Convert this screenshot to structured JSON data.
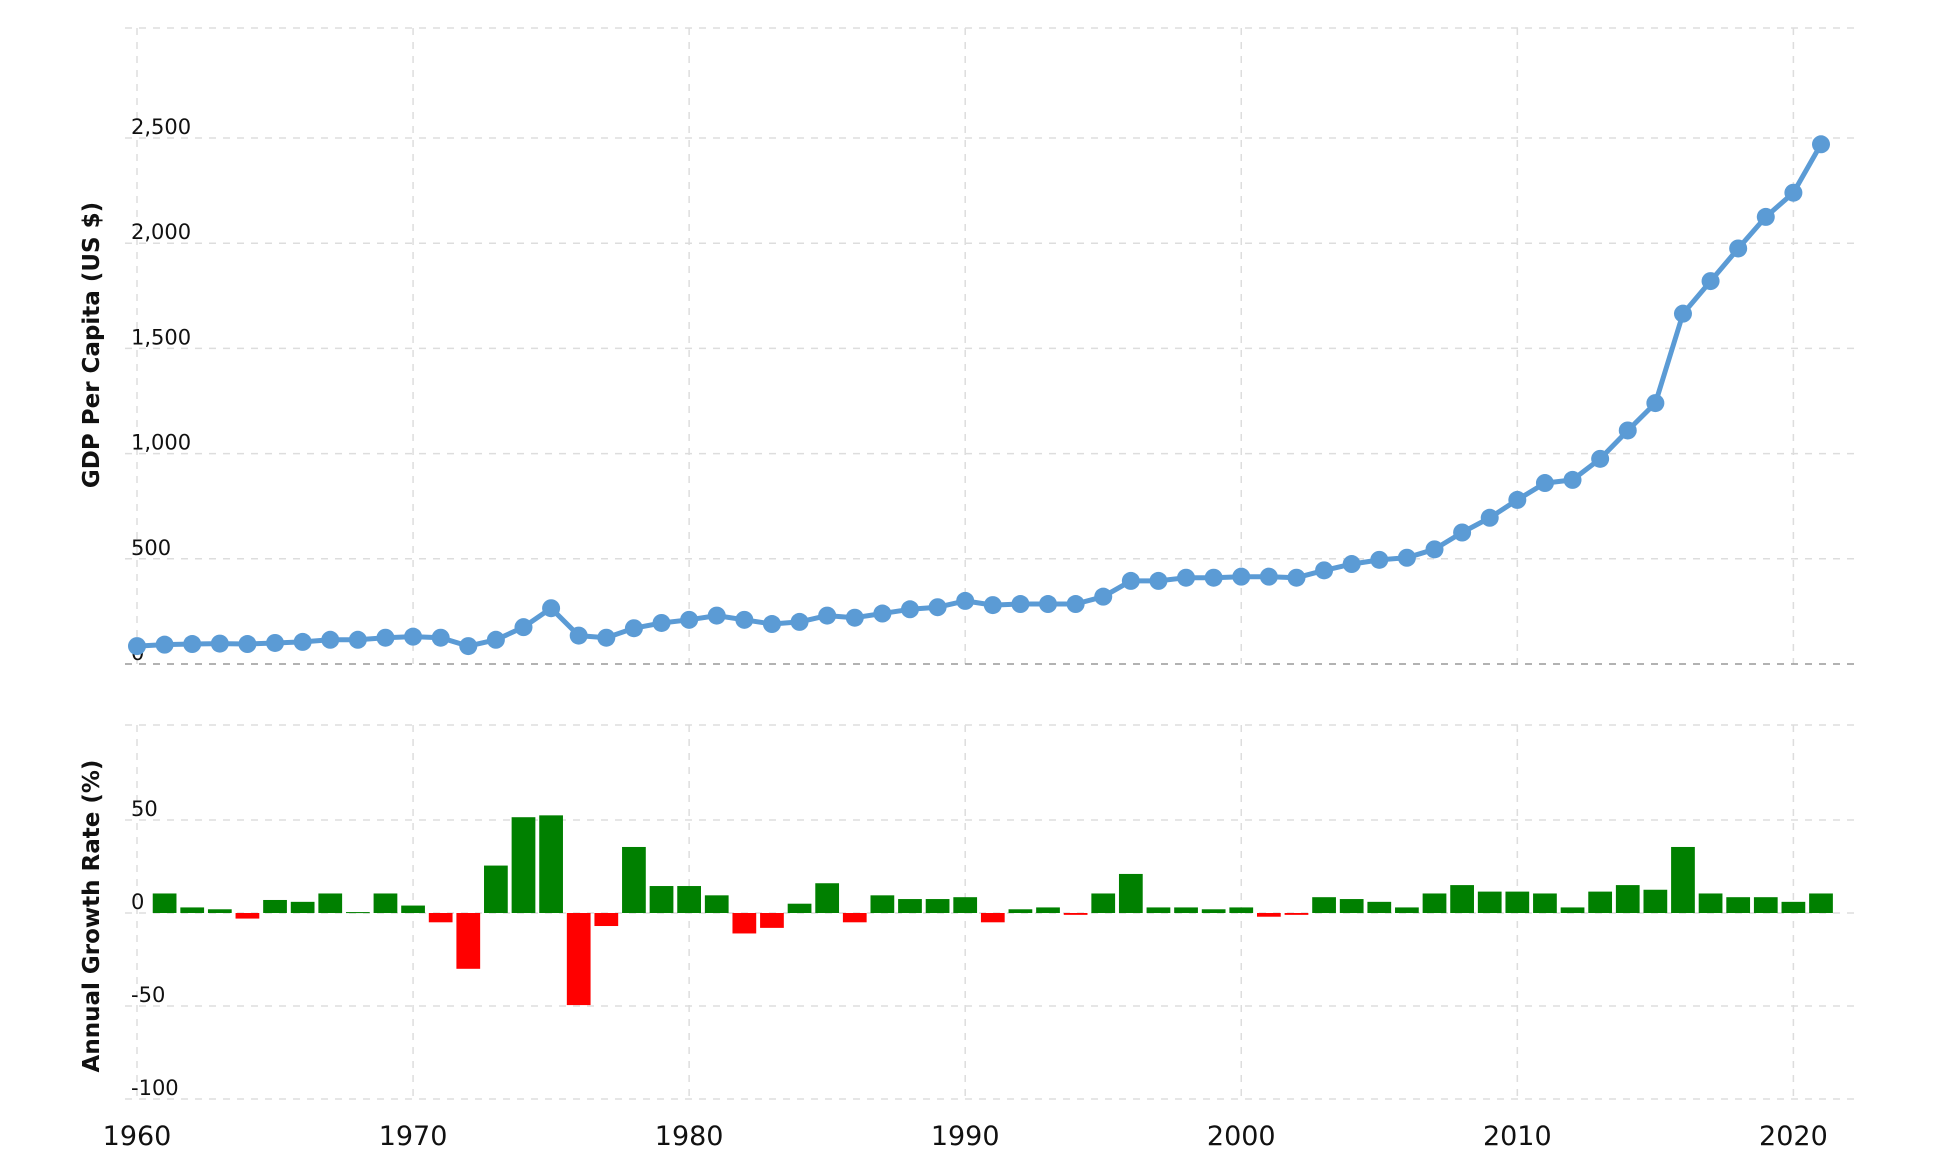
{
  "chart_data": [
    {
      "type": "line",
      "ylabel": "GDP Per Capita (US $)",
      "xlim": [
        1960,
        2021
      ],
      "ylim": [
        0,
        2500
      ],
      "yticks": [
        "0",
        "500",
        "1,000",
        "1,500",
        "2,000",
        "2,500"
      ],
      "ytick_values": [
        0,
        500,
        1000,
        1500,
        2000,
        2500
      ],
      "grid": true,
      "color": "#5b9bd5",
      "series": [
        {
          "x": [
            1960,
            1961,
            1962,
            1963,
            1964,
            1965,
            1966,
            1967,
            1968,
            1969,
            1970,
            1971,
            1972,
            1973,
            1974,
            1975,
            1976,
            1977,
            1978,
            1979,
            1980,
            1981,
            1982,
            1983,
            1984,
            1985,
            1986,
            1987,
            1988,
            1989,
            1990,
            1991,
            1992,
            1993,
            1994,
            1995,
            1996,
            1997,
            1998,
            1999,
            2000,
            2001,
            2002,
            2003,
            2004,
            2005,
            2006,
            2007,
            2008,
            2009,
            2010,
            2011,
            2012,
            2013,
            2014,
            2015,
            2016,
            2017,
            2018,
            2019,
            2020,
            2021
          ],
          "values": [
            85,
            92,
            95,
            97,
            95,
            100,
            105,
            115,
            115,
            125,
            130,
            125,
            85,
            115,
            175,
            265,
            135,
            125,
            170,
            195,
            210,
            230,
            210,
            190,
            200,
            230,
            220,
            240,
            260,
            270,
            300,
            280,
            285,
            285,
            285,
            320,
            395,
            395,
            410,
            410,
            415,
            415,
            410,
            445,
            475,
            495,
            505,
            545,
            625,
            695,
            780,
            860,
            875,
            975,
            1110,
            1240,
            1665,
            1820,
            1975,
            2125,
            2240,
            2470
          ]
        }
      ]
    },
    {
      "type": "bar",
      "ylabel": "Annual Growth Rate (%)",
      "ylim": [
        -100,
        100
      ],
      "yticks": [
        "-100",
        "-50",
        "0",
        "50"
      ],
      "ytick_values": [
        -100,
        -50,
        0,
        50
      ],
      "grid": true,
      "positive_color": "#008000",
      "negative_color": "#ff0000",
      "x": [
        1961,
        1962,
        1963,
        1964,
        1965,
        1966,
        1967,
        1968,
        1969,
        1970,
        1971,
        1972,
        1973,
        1974,
        1975,
        1976,
        1977,
        1978,
        1979,
        1980,
        1981,
        1982,
        1983,
        1984,
        1985,
        1986,
        1987,
        1988,
        1989,
        1990,
        1991,
        1992,
        1993,
        1994,
        1995,
        1996,
        1997,
        1998,
        1999,
        2000,
        2001,
        2002,
        2003,
        2004,
        2005,
        2006,
        2007,
        2008,
        2009,
        2010,
        2011,
        2012,
        2013,
        2014,
        2015,
        2016,
        2017,
        2018,
        2019,
        2020,
        2021
      ],
      "values": [
        10.5,
        3,
        2,
        -3,
        7,
        6,
        10.5,
        0.5,
        10.5,
        4,
        -5,
        -30,
        25.5,
        51.5,
        52.5,
        -49.5,
        -7,
        35.5,
        14.5,
        14.5,
        9.5,
        -11,
        -8,
        5,
        16,
        -5,
        9.5,
        7.5,
        7.5,
        8.5,
        -5,
        2,
        3,
        -1,
        10.5,
        21,
        3,
        3,
        2,
        3,
        -2,
        -1,
        8.5,
        7.5,
        6,
        3,
        10.5,
        15,
        11.5,
        11.5,
        10.5,
        3,
        11.5,
        15,
        12.5,
        35.5,
        10.5,
        8.5,
        8.5,
        6,
        10.5
      ]
    }
  ],
  "x_axis": {
    "ticks": [
      "1960",
      "1970",
      "1980",
      "1990",
      "2000",
      "2010",
      "2020"
    ],
    "tick_values": [
      1960,
      1970,
      1980,
      1990,
      2000,
      2010,
      2020
    ]
  }
}
